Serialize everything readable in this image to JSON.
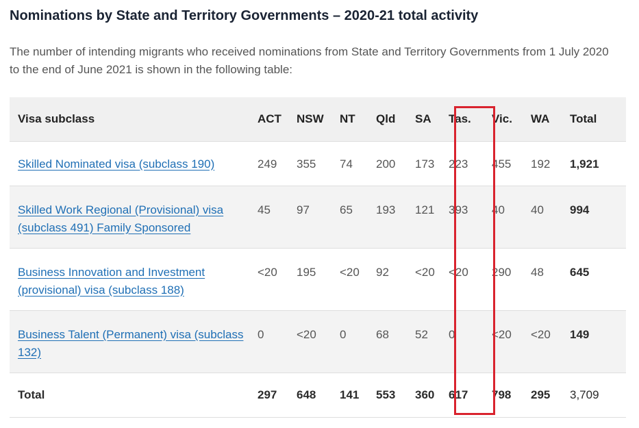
{
  "title": "Nominations by State and Territory Governments – 2020-21 total activity",
  "intro": "The number of intending migrants who received nominations from State and Territory Governments from 1 July 2020 to the end of June 2021 is shown in the following table:",
  "table": {
    "headers": [
      "Visa subclass",
      "ACT",
      "NSW",
      "NT",
      "Qld",
      "SA",
      "Tas.",
      "Vic.",
      "WA",
      "Total"
    ],
    "rows": [
      {
        "visa": "Skilled Nominated visa (subclass 190)",
        "values": [
          "249",
          "355",
          "74",
          "200",
          "173",
          "223",
          "455",
          "192"
        ],
        "total": "1,921"
      },
      {
        "visa": "Skilled Work Regional (Provisional) visa (subclass 491) Family Sponsored",
        "values": [
          "45",
          "97",
          "65",
          "193",
          "121",
          "393",
          "40",
          "40"
        ],
        "total": "994"
      },
      {
        "visa": "Business Innovation and Investment (provisional) visa (subclass 188)",
        "values": [
          "<20",
          "195",
          "<20",
          "92",
          "<20",
          "<20",
          "290",
          "48"
        ],
        "total": "645"
      },
      {
        "visa": "Business Talent (Permanent) visa (subclass 132)",
        "values": [
          "0",
          "<20",
          "0",
          "68",
          "52",
          "0",
          "<20",
          "<20"
        ],
        "total": "149"
      }
    ],
    "footer": {
      "label": "Total",
      "values": [
        "297",
        "648",
        "141",
        "553",
        "360",
        "617",
        "798",
        "295"
      ],
      "total": "3,709"
    }
  },
  "highlight": {
    "column": "Tas.",
    "color": "#d9232e"
  }
}
